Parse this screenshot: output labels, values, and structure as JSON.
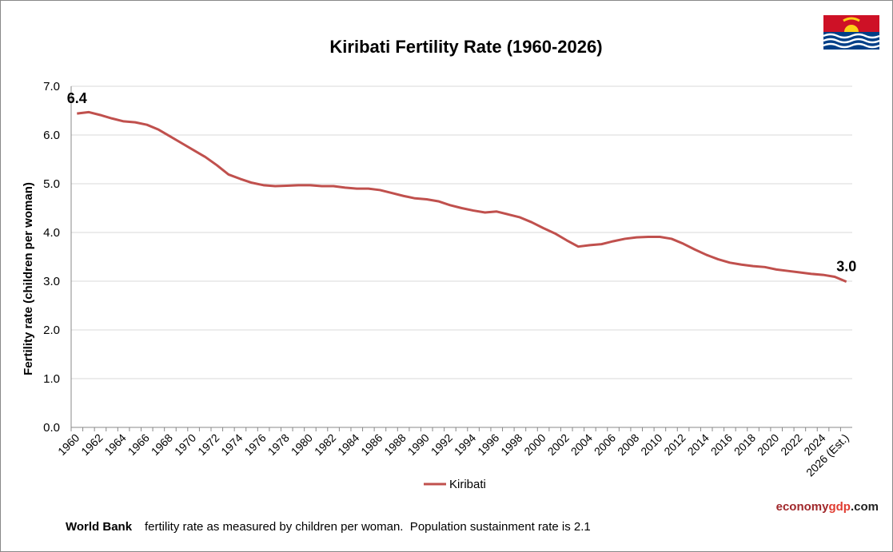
{
  "chart_data": {
    "type": "line",
    "title": "Kiribati Fertility Rate (1960-2026)",
    "y_label": "Fertility rate (children per woman)",
    "categories": [
      "1960",
      null,
      "1962",
      null,
      "1964",
      null,
      "1966",
      null,
      "1968",
      null,
      "1970",
      null,
      "1972",
      null,
      "1974",
      null,
      "1976",
      null,
      "1978",
      null,
      "1980",
      null,
      "1982",
      null,
      "1984",
      null,
      "1986",
      null,
      "1988",
      null,
      "1990",
      null,
      "1992",
      null,
      "1994",
      null,
      "1996",
      null,
      "1998",
      null,
      "2000",
      null,
      "2002",
      null,
      "2004",
      null,
      "2006",
      null,
      "2008",
      null,
      "2010",
      null,
      "2012",
      null,
      "2014",
      null,
      "2016",
      null,
      "2018",
      null,
      "2020",
      null,
      "2022",
      null,
      "2024",
      null,
      "2026 (Est.)"
    ],
    "series": [
      {
        "name": "Kiribati",
        "color": "#c0504d",
        "values": [
          6.44,
          6.47,
          6.41,
          6.34,
          6.28,
          6.26,
          6.21,
          6.11,
          5.97,
          5.83,
          5.69,
          5.55,
          5.38,
          5.19,
          5.1,
          5.02,
          4.97,
          4.95,
          4.96,
          4.97,
          4.97,
          4.95,
          4.95,
          4.92,
          4.9,
          4.9,
          4.87,
          4.81,
          4.75,
          4.7,
          4.68,
          4.64,
          4.56,
          4.5,
          4.45,
          4.41,
          4.43,
          4.37,
          4.31,
          4.21,
          4.09,
          3.98,
          3.84,
          3.71,
          3.74,
          3.76,
          3.82,
          3.87,
          3.9,
          3.91,
          3.91,
          3.87,
          3.77,
          3.65,
          3.54,
          3.45,
          3.38,
          3.34,
          3.31,
          3.29,
          3.24,
          3.21,
          3.18,
          3.15,
          3.13,
          3.09,
          2.99
        ],
        "value_labels": [
          "6.4",
          null,
          null,
          null,
          null,
          null,
          null,
          null,
          null,
          null,
          null,
          null,
          null,
          null,
          null,
          null,
          null,
          null,
          null,
          null,
          null,
          null,
          null,
          null,
          null,
          null,
          null,
          null,
          null,
          null,
          null,
          null,
          null,
          null,
          null,
          null,
          null,
          null,
          null,
          null,
          null,
          null,
          null,
          null,
          null,
          null,
          null,
          null,
          null,
          null,
          null,
          null,
          null,
          null,
          null,
          null,
          null,
          null,
          null,
          null,
          null,
          null,
          null,
          null,
          null,
          null,
          "3.0"
        ]
      }
    ],
    "ylim": [
      0,
      7
    ],
    "yticks": [
      {
        "value": 0,
        "label": "0.0"
      },
      {
        "value": 1,
        "label": "1.0"
      },
      {
        "value": 2,
        "label": "2.0"
      },
      {
        "value": 3,
        "label": "3.0"
      },
      {
        "value": 4,
        "label": "4.0"
      },
      {
        "value": 5,
        "label": "5.0"
      },
      {
        "value": 6,
        "label": "6.0"
      },
      {
        "value": 7,
        "label": "7.0"
      }
    ],
    "grid": true,
    "legend": "bottom"
  },
  "footer": {
    "bold": "World Bank",
    "text": "fertility rate as measured by children per woman.  Population sustainment rate is 2.1"
  },
  "brand": [
    "economy",
    "gdp",
    ".com"
  ]
}
